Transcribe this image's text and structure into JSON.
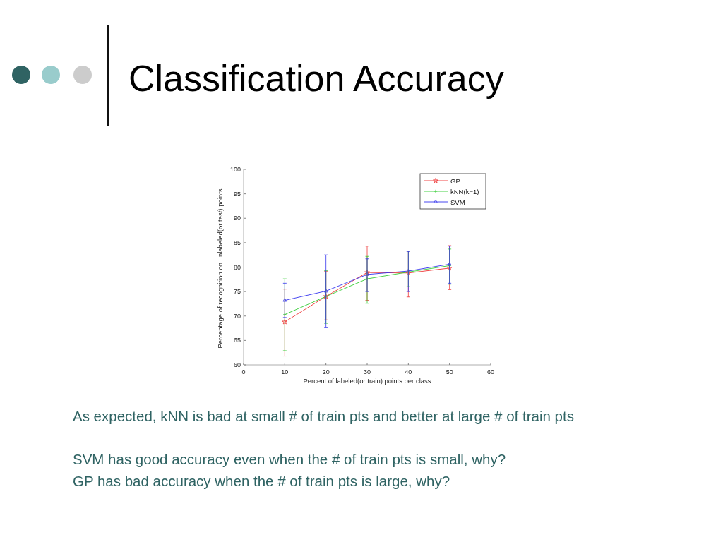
{
  "chart_data": {
    "type": "line",
    "title": "Classification Accuracy",
    "xlabel": "Percent of labeled(or train) points per class",
    "ylabel": "Percentage of recognition on unlabeled(or test) points",
    "x": [
      10,
      20,
      30,
      40,
      50
    ],
    "series": [
      {
        "name": "GP",
        "color": "#ee3333",
        "marker": "star",
        "values": [
          68.8,
          74.0,
          78.9,
          78.8,
          79.8
        ],
        "errors": [
          [
            61.8,
            75.5
          ],
          [
            69.2,
            79.1
          ],
          [
            73.2,
            84.3
          ],
          [
            73.9,
            83.3
          ],
          [
            75.4,
            84.4
          ]
        ]
      },
      {
        "name": "kNN(k=1)",
        "color": "#33cc33",
        "marker": "cross",
        "values": [
          70.3,
          74.0,
          77.6,
          79.0,
          80.3
        ],
        "errors": [
          [
            62.9,
            77.6
          ],
          [
            68.5,
            79.3
          ],
          [
            72.6,
            82.2
          ],
          [
            76.0,
            83.3
          ],
          [
            76.5,
            83.7
          ]
        ]
      },
      {
        "name": "SVM",
        "color": "#3333ee",
        "marker": "triangle",
        "values": [
          73.2,
          75.1,
          78.5,
          79.2,
          80.6
        ],
        "errors": [
          [
            69.7,
            76.7
          ],
          [
            67.6,
            82.5
          ],
          [
            75.0,
            81.7
          ],
          [
            75.0,
            83.2
          ],
          [
            76.7,
            84.3
          ]
        ]
      }
    ],
    "xlim": [
      0,
      60
    ],
    "xticks": [
      0,
      10,
      20,
      30,
      40,
      50,
      60
    ],
    "ylim": [
      60,
      100
    ],
    "yticks": [
      60,
      65,
      70,
      75,
      80,
      85,
      90,
      95,
      100
    ],
    "legend": "top right",
    "annotations": [
      "As expected, kNN is bad at small # of train pts and better at large # of train pts",
      "SVM has good accuracy even when the # of train pts is small, why?",
      "GP has bad accuracy when the # of train pts is large, why?"
    ]
  }
}
